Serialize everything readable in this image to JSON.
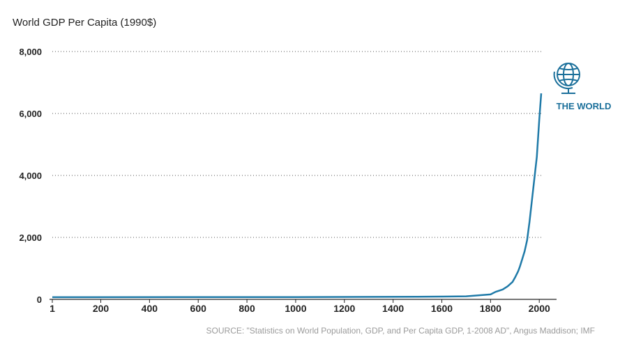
{
  "title": "World GDP Per Capita (1990$)",
  "source": "SOURCE: \"Statistics on World Population, GDP, and Per Capita GDP, 1-2008 AD\", Angus Maddison; IMF",
  "badge": {
    "label": "THE WORLD",
    "icon": "globe-icon"
  },
  "colors": {
    "line": "#1f7aa8",
    "grid": "#555555",
    "badge": "#1a6f9a"
  },
  "chart_data": {
    "type": "line",
    "title": "World GDP Per Capita (1990$)",
    "xlabel": "",
    "ylabel": "",
    "xlim": [
      1,
      2008
    ],
    "ylim": [
      0,
      8000
    ],
    "xticks": [
      1,
      200,
      400,
      600,
      800,
      1000,
      1200,
      1400,
      1600,
      1800,
      2000
    ],
    "xtick_labels": [
      "1",
      "200",
      "400",
      "600",
      "800",
      "1000",
      "1200",
      "1400",
      "1600",
      "1800",
      "2000"
    ],
    "yticks": [
      0,
      2000,
      4000,
      6000,
      8000
    ],
    "ytick_labels": [
      "0",
      "2,000",
      "4,000",
      "6,000",
      "8,000"
    ],
    "grid": "horizontal-dotted",
    "series": [
      {
        "name": "THE WORLD",
        "x": [
          1,
          1000,
          1500,
          1600,
          1700,
          1750,
          1800,
          1820,
          1850,
          1870,
          1890,
          1900,
          1913,
          1920,
          1930,
          1940,
          1950,
          1960,
          1970,
          1980,
          1990,
          2000,
          2008
        ],
        "y": [
          70,
          75,
          85,
          90,
          100,
          130,
          160,
          240,
          320,
          420,
          560,
          700,
          900,
          1050,
          1300,
          1550,
          1900,
          2500,
          3200,
          3900,
          4600,
          5800,
          6650
        ]
      }
    ]
  }
}
